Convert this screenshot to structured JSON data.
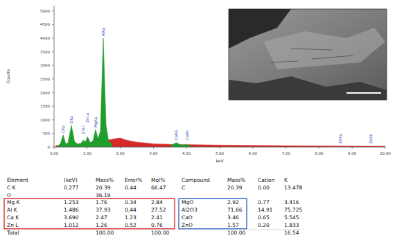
{
  "chart_data": {
    "type": "area",
    "x_label": "keV",
    "y_label": "Counts",
    "xlim": [
      0,
      10
    ],
    "xticks": [
      {
        "value": 0,
        "label": "0.00"
      },
      {
        "value": 1,
        "label": "1.00"
      },
      {
        "value": 2,
        "label": "2.00"
      },
      {
        "value": 3,
        "label": "3.00"
      },
      {
        "value": 4,
        "label": "4.00"
      },
      {
        "value": 5,
        "label": "5.00"
      },
      {
        "value": 6,
        "label": "6.00"
      },
      {
        "value": 7,
        "label": "7.00"
      },
      {
        "value": 8,
        "label": "8.00"
      },
      {
        "value": 9,
        "label": "9.00"
      },
      {
        "value": 10,
        "label": "10.00"
      }
    ],
    "ylim": [
      0,
      5200
    ],
    "yticks": [
      0,
      500,
      1000,
      1500,
      2000,
      2500,
      3000,
      3500,
      4000,
      4500,
      5000
    ],
    "grid": false,
    "series": [
      {
        "color": "#d42a2a",
        "x": [
          0.05,
          0.5,
          1.0,
          1.6,
          1.8,
          2.0,
          2.2,
          2.5,
          3.0,
          3.5,
          4.0,
          5.0,
          6.0,
          7.0,
          8.0,
          9.0,
          10.0
        ],
        "values": [
          50,
          100,
          150,
          250,
          300,
          330,
          250,
          180,
          120,
          100,
          90,
          70,
          60,
          50,
          45,
          40,
          35
        ]
      },
      {
        "color": "#1f9e2c",
        "x": [
          0.1,
          0.2,
          0.277,
          0.35,
          0.42,
          0.525,
          0.62,
          0.72,
          0.8,
          0.88,
          0.95,
          1.012,
          1.1,
          1.18,
          1.253,
          1.33,
          1.4,
          1.486,
          1.57,
          1.65,
          1.75,
          2.5,
          3.55,
          3.69,
          3.83,
          3.92,
          4.01,
          4.1
        ],
        "values": [
          0,
          150,
          450,
          120,
          150,
          800,
          200,
          100,
          120,
          250,
          200,
          380,
          150,
          250,
          650,
          300,
          600,
          4000,
          800,
          200,
          120,
          null,
          80,
          160,
          80,
          70,
          100,
          60
        ]
      }
    ],
    "annotations": [
      {
        "text": "CKa",
        "x": 0.277,
        "y": 520
      },
      {
        "text": "OKa",
        "x": 0.525,
        "y": 870
      },
      {
        "text": "ZnLl",
        "x": 0.88,
        "y": 480
      },
      {
        "text": "ZnLa",
        "x": 1.012,
        "y": 900
      },
      {
        "text": "MgKa",
        "x": 1.253,
        "y": 720
      },
      {
        "text": "AlKa",
        "x": 1.486,
        "y": 4080
      },
      {
        "text": "CaKa",
        "x": 3.69,
        "y": 260
      },
      {
        "text": "CaKb",
        "x": 4.01,
        "y": 260
      },
      {
        "text": "ZnKa",
        "x": 8.63,
        "y": 130
      },
      {
        "text": "ZnKb",
        "x": 9.57,
        "y": 130
      }
    ]
  },
  "table": {
    "columns": [
      "Element",
      "(keV)",
      "Mass%",
      "Error%",
      "Mol%",
      "Compound",
      "Mass%",
      "Cation",
      "K"
    ],
    "rows": [
      [
        "C K",
        "0.277",
        "20.39",
        "0.44",
        "66.47",
        "C",
        "20.39",
        "0.00",
        "13.478"
      ],
      [
        "O",
        null,
        "36.19",
        null,
        null,
        null,
        null,
        null,
        null
      ],
      [
        "Mg K",
        "1.253",
        "1.76",
        "0.34",
        "2.84",
        "MgO",
        "2.92",
        "0.77",
        "3.416"
      ],
      [
        "Al K",
        "1.486",
        "37.93",
        "0.44",
        "27.52",
        "Al2O3",
        "71.66",
        "14.91",
        "75.725"
      ],
      [
        "Ca K",
        "3.690",
        "2.47",
        "1.23",
        "2.41",
        "CaO",
        "3.46",
        "0.65",
        "5.545"
      ],
      [
        "Zn L",
        "1.012",
        "1.26",
        "0.52",
        "0.76",
        "ZnO",
        "1.57",
        "0.20",
        "1.833"
      ],
      [
        "Total",
        null,
        "100.00",
        null,
        "100.00",
        null,
        "100.00",
        null,
        "16.54"
      ]
    ]
  }
}
